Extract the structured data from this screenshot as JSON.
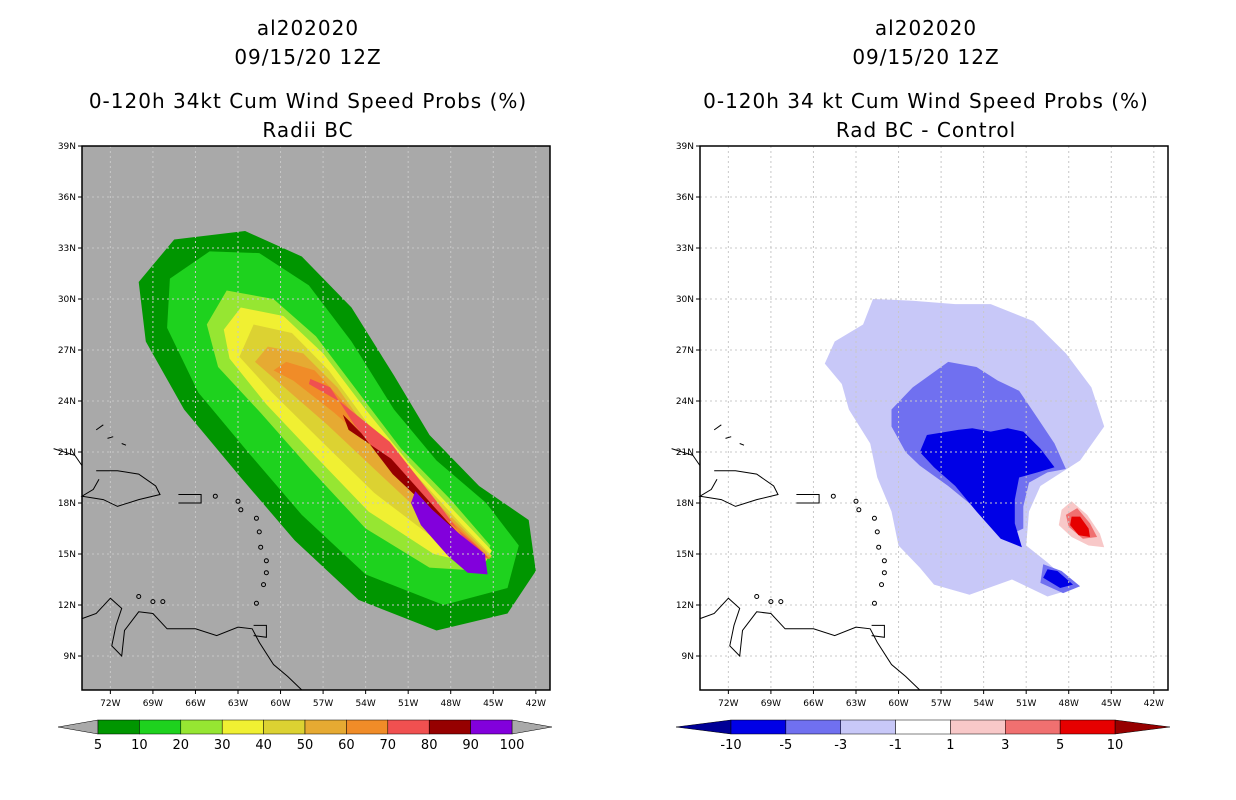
{
  "left": {
    "title1": "al202020",
    "title2": "09/15/20 12Z",
    "title3": "0-120h 34kt Cum Wind Speed Probs (%)",
    "title4": "Radii BC",
    "bg_color": "#a9a9a9"
  },
  "right": {
    "title1": "al202020",
    "title2": "09/15/20 12Z",
    "title3": "0-120h 34 kt Cum Wind Speed Probs (%)",
    "title4": "Rad BC - Control",
    "bg_color": "#ffffff"
  },
  "chart_data": [
    {
      "type": "heatmap",
      "title": "0-120h 34kt Cum Wind Speed Probs (%) — Radii BC",
      "lon_range": [
        -74,
        -41
      ],
      "lat_range": [
        7,
        39
      ],
      "x_ticks": [
        "72W",
        "69W",
        "66W",
        "63W",
        "60W",
        "57W",
        "54W",
        "51W",
        "48W",
        "45W",
        "42W"
      ],
      "y_ticks": [
        "39N",
        "36N",
        "33N",
        "30N",
        "27N",
        "24N",
        "21N",
        "18N",
        "15N",
        "12N",
        "9N"
      ],
      "grid": true,
      "colorbar": {
        "labels": [
          "5",
          "10",
          "20",
          "30",
          "40",
          "50",
          "60",
          "70",
          "80",
          "90",
          "100"
        ],
        "colors": [
          "#009600",
          "#1ed21e",
          "#96e632",
          "#f0f032",
          "#dcd232",
          "#e6aa32",
          "#f08c28",
          "#f05050",
          "#960000",
          "#8200dc"
        ]
      },
      "contours": [
        {
          "level": 5,
          "color": "#009600",
          "points": [
            [
              -67.5,
              33.5
            ],
            [
              -62.5,
              34
            ],
            [
              -58.5,
              32.5
            ],
            [
              -55,
              29.5
            ],
            [
              -52,
              25.5
            ],
            [
              -49.5,
              22
            ],
            [
              -46,
              19
            ],
            [
              -42.5,
              17
            ],
            [
              -42,
              14
            ],
            [
              -44,
              11.5
            ],
            [
              -49,
              10.5
            ],
            [
              -54.5,
              12.3
            ],
            [
              -59,
              15.8
            ],
            [
              -62.8,
              19.5
            ],
            [
              -66.8,
              23.5
            ],
            [
              -69.5,
              27.5
            ],
            [
              -70,
              31
            ]
          ]
        },
        {
          "level": 10,
          "color": "#1ed21e",
          "points": [
            [
              -65,
              32.8
            ],
            [
              -61.5,
              32.7
            ],
            [
              -58,
              30.8
            ],
            [
              -55,
              27.5
            ],
            [
              -52,
              23.5
            ],
            [
              -49,
              20.5
            ],
            [
              -45.5,
              18
            ],
            [
              -43.2,
              15.5
            ],
            [
              -44,
              13
            ],
            [
              -48.5,
              12
            ],
            [
              -54,
              13.8
            ],
            [
              -58.5,
              17.3
            ],
            [
              -62.3,
              21
            ],
            [
              -65.8,
              24.5
            ],
            [
              -68,
              28.3
            ],
            [
              -67.8,
              31.2
            ]
          ]
        },
        {
          "level": 20,
          "color": "#96e632",
          "points": [
            [
              -63.8,
              30.5
            ],
            [
              -60.5,
              30
            ],
            [
              -57.5,
              27.8
            ],
            [
              -54.5,
              24.5
            ],
            [
              -51.5,
              21.2
            ],
            [
              -48,
              18.2
            ],
            [
              -45.2,
              15.5
            ],
            [
              -45.7,
              14
            ],
            [
              -49.5,
              14.2
            ],
            [
              -54,
              16.5
            ],
            [
              -57.9,
              20
            ],
            [
              -61.4,
              23.3
            ],
            [
              -64.4,
              26
            ],
            [
              -65.2,
              28.5
            ]
          ]
        },
        {
          "level": 30,
          "color": "#f0f032",
          "points": [
            [
              -62.8,
              29.5
            ],
            [
              -59.8,
              29
            ],
            [
              -57,
              26.8
            ],
            [
              -54,
              23.5
            ],
            [
              -51,
              20.4
            ],
            [
              -47.6,
              17.4
            ],
            [
              -45.1,
              15.2
            ],
            [
              -45.7,
              14.3
            ],
            [
              -49.2,
              15
            ],
            [
              -53.8,
              17.5
            ],
            [
              -57.6,
              20.8
            ],
            [
              -61,
              23.8
            ],
            [
              -63.6,
              26.5
            ],
            [
              -64,
              28.2
            ]
          ]
        },
        {
          "level": 40,
          "color": "#dcd232",
          "points": [
            [
              -61.9,
              28.5
            ],
            [
              -59.2,
              28
            ],
            [
              -56.6,
              25.8
            ],
            [
              -53.7,
              22.5
            ],
            [
              -50.4,
              19.6
            ],
            [
              -47.2,
              16.7
            ],
            [
              -45.1,
              14.9
            ],
            [
              -45.8,
              14.5
            ],
            [
              -49,
              15.8
            ],
            [
              -53.4,
              18.6
            ],
            [
              -57.2,
              21.7
            ],
            [
              -60.6,
              24.5
            ],
            [
              -62.9,
              26.6
            ]
          ]
        },
        {
          "level": 50,
          "color": "#e6aa32",
          "points": [
            [
              -60.9,
              27.2
            ],
            [
              -58.4,
              26.8
            ],
            [
              -56,
              24.8
            ],
            [
              -53.3,
              21.6
            ],
            [
              -50,
              18.9
            ],
            [
              -46.8,
              16.2
            ],
            [
              -45.1,
              14.8
            ],
            [
              -46,
              14.7
            ],
            [
              -48.9,
              16.5
            ],
            [
              -53,
              19.7
            ],
            [
              -56.7,
              22.6
            ],
            [
              -60,
              25
            ],
            [
              -61.8,
              26.3
            ]
          ]
        },
        {
          "level": 60,
          "color": "#f08c28",
          "points": [
            [
              -59.6,
              26.3
            ],
            [
              -57.6,
              25.8
            ],
            [
              -55.4,
              23.8
            ],
            [
              -52.7,
              20.8
            ],
            [
              -49.5,
              18.2
            ],
            [
              -46.5,
              15.8
            ],
            [
              -45.2,
              14.7
            ],
            [
              -46.2,
              14.9
            ],
            [
              -48.9,
              17.3
            ],
            [
              -52.7,
              20.7
            ],
            [
              -56.2,
              23.3
            ],
            [
              -59.1,
              25.2
            ],
            [
              -60.5,
              25.8
            ]
          ]
        },
        {
          "level": 70,
          "color": "#f05050",
          "points": [
            [
              -57.9,
              25.3
            ],
            [
              -56.5,
              24.8
            ],
            [
              -54.8,
              22.6
            ],
            [
              -52.1,
              19.9
            ],
            [
              -49,
              17.5
            ],
            [
              -46.2,
              15.5
            ],
            [
              -45.3,
              14.7
            ],
            [
              -46.4,
              15.2
            ],
            [
              -49,
              18.1
            ],
            [
              -52.3,
              21.6
            ],
            [
              -55.7,
              23.9
            ],
            [
              -58,
              25
            ]
          ]
        },
        {
          "level": 80,
          "color": "#960000",
          "points": [
            [
              -55.6,
              23.2
            ],
            [
              -54.3,
              22.1
            ],
            [
              -52.1,
              19.7
            ],
            [
              -48.8,
              17.1
            ],
            [
              -46.2,
              15.3
            ],
            [
              -45.4,
              14.8
            ],
            [
              -46.8,
              15.6
            ],
            [
              -49.2,
              17.8
            ],
            [
              -52.2,
              20.6
            ],
            [
              -55.2,
              22.3
            ]
          ]
        },
        {
          "level": 90,
          "color": "#8200dc",
          "points": [
            [
              -50.5,
              18.7
            ],
            [
              -49.3,
              17.6
            ],
            [
              -47.4,
              16.2
            ],
            [
              -45.6,
              15
            ],
            [
              -45.4,
              13.8
            ],
            [
              -46.8,
              13.9
            ],
            [
              -48.2,
              14.9
            ],
            [
              -50.1,
              16.7
            ],
            [
              -50.8,
              18
            ]
          ]
        }
      ]
    },
    {
      "type": "heatmap",
      "title": "0-120h 34 kt Cum Wind Speed Probs (%) — Rad BC - Control",
      "lon_range": [
        -74,
        -41
      ],
      "lat_range": [
        7,
        39
      ],
      "x_ticks": [
        "72W",
        "69W",
        "66W",
        "63W",
        "60W",
        "57W",
        "54W",
        "51W",
        "48W",
        "45W",
        "42W"
      ],
      "y_ticks": [
        "39N",
        "36N",
        "33N",
        "30N",
        "27N",
        "24N",
        "21N",
        "18N",
        "15N",
        "12N",
        "9N"
      ],
      "grid": true,
      "colorbar": {
        "labels": [
          "-10",
          "-5",
          "-3",
          "-1",
          "1",
          "3",
          "5",
          "10"
        ],
        "colors": [
          "#000096",
          "#0000e6",
          "#7070f0",
          "#c8c8f8",
          "#ffffff",
          "#f8c8c8",
          "#f07070",
          "#e60000",
          "#960000"
        ]
      },
      "contours": [
        {
          "level": -1,
          "color": "#c8c8f8",
          "points": [
            [
              -61.8,
              30
            ],
            [
              -59,
              29.9
            ],
            [
              -56,
              29.7
            ],
            [
              -53.5,
              29.7
            ],
            [
              -50.5,
              28.7
            ],
            [
              -48.2,
              26.8
            ],
            [
              -46.4,
              24.8
            ],
            [
              -45.5,
              22.5
            ],
            [
              -47.2,
              20.5
            ],
            [
              -50,
              19
            ],
            [
              -50.8,
              17.5
            ],
            [
              -51,
              15.5
            ],
            [
              -49.5,
              14.5
            ],
            [
              -47.5,
              13
            ],
            [
              -49.5,
              12.5
            ],
            [
              -52,
              13.5
            ],
            [
              -55,
              12.6
            ],
            [
              -57.5,
              13.2
            ],
            [
              -58.5,
              14.2
            ],
            [
              -60,
              15.5
            ],
            [
              -60.5,
              17.5
            ],
            [
              -61.5,
              19.5
            ],
            [
              -62,
              21.5
            ],
            [
              -63.5,
              23.5
            ],
            [
              -64,
              25
            ],
            [
              -65.2,
              26.2
            ],
            [
              -64.5,
              27.5
            ],
            [
              -62.5,
              28.5
            ]
          ]
        },
        {
          "level": -3,
          "color": "#7070f0",
          "points": [
            [
              -56.5,
              26.3
            ],
            [
              -54.5,
              26
            ],
            [
              -53,
              25.2
            ],
            [
              -51.5,
              24.6
            ],
            [
              -50.2,
              23
            ],
            [
              -49,
              21.5
            ],
            [
              -48.2,
              20
            ],
            [
              -49.5,
              19.8
            ],
            [
              -50.8,
              19.2
            ],
            [
              -51.2,
              17.8
            ],
            [
              -51.2,
              16.5
            ],
            [
              -52.5,
              16
            ],
            [
              -54.3,
              17.5
            ],
            [
              -56.5,
              19
            ],
            [
              -58.5,
              20.2
            ],
            [
              -59.5,
              21
            ],
            [
              -60.5,
              22.5
            ],
            [
              -60.5,
              23.5
            ],
            [
              -59,
              24.8
            ]
          ]
        },
        {
          "level": -3,
          "color": "#7070f0",
          "points": [
            [
              -49.8,
              14.4
            ],
            [
              -48.5,
              14
            ],
            [
              -47.2,
              13.1
            ],
            [
              -48.4,
              12.7
            ],
            [
              -50,
              13.3
            ]
          ]
        },
        {
          "level": -5,
          "color": "#0000e6",
          "points": [
            [
              -55.8,
              22.3
            ],
            [
              -54.8,
              22.4
            ],
            [
              -53.5,
              22.2
            ],
            [
              -52.3,
              22.4
            ],
            [
              -51.2,
              22.2
            ],
            [
              -50,
              21.2
            ],
            [
              -49,
              20.1
            ],
            [
              -50.2,
              19.8
            ],
            [
              -51.5,
              19.5
            ],
            [
              -51.8,
              18.2
            ],
            [
              -51.8,
              16.8
            ],
            [
              -51.3,
              15.4
            ],
            [
              -52.8,
              15.9
            ],
            [
              -54.5,
              17.5
            ],
            [
              -56,
              19
            ],
            [
              -57.5,
              20.1
            ],
            [
              -58.5,
              21
            ],
            [
              -58,
              22
            ]
          ]
        },
        {
          "level": -5,
          "color": "#0000e6",
          "points": [
            [
              -49.5,
              14.1
            ],
            [
              -48.8,
              14
            ],
            [
              -47.7,
              13.2
            ],
            [
              -48.6,
              13
            ],
            [
              -49.8,
              13.6
            ]
          ]
        },
        {
          "level": 3,
          "color": "#f8c8c8",
          "points": [
            [
              -47.8,
              18.1
            ],
            [
              -46.7,
              17.3
            ],
            [
              -45.8,
              16.2
            ],
            [
              -45.5,
              15.4
            ],
            [
              -46.6,
              15.5
            ],
            [
              -47.8,
              16
            ],
            [
              -48.7,
              16.7
            ],
            [
              -48.5,
              17.6
            ]
          ]
        },
        {
          "level": 5,
          "color": "#f07070",
          "points": [
            [
              -47.4,
              17.7
            ],
            [
              -46.5,
              16.8
            ],
            [
              -46,
              16
            ],
            [
              -47,
              15.9
            ],
            [
              -48,
              16.6
            ],
            [
              -48.2,
              17.3
            ]
          ]
        },
        {
          "level": 10,
          "color": "#e60000",
          "points": [
            [
              -47.2,
              17.2
            ],
            [
              -46.6,
              16.5
            ],
            [
              -46.5,
              16
            ],
            [
              -47.3,
              16.1
            ],
            [
              -47.9,
              16.7
            ],
            [
              -47.8,
              17.2
            ]
          ]
        }
      ]
    }
  ]
}
